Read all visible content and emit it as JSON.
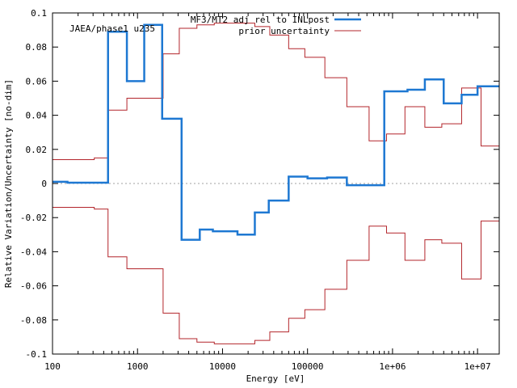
{
  "chart_data": {
    "type": "line",
    "title": "JAEA/phase1 u235",
    "xlabel": "Energy [eV]",
    "ylabel": "Relative Variation/Uncertainty [no-dim]",
    "xscale": "log",
    "xlim": [
      100,
      18000000
    ],
    "ylim": [
      -0.1,
      0.1
    ],
    "x_ticks": [
      {
        "value": 100,
        "label": "100"
      },
      {
        "value": 1000,
        "label": "1000"
      },
      {
        "value": 10000,
        "label": "10000"
      },
      {
        "value": 100000,
        "label": "100000"
      },
      {
        "value": 1000000,
        "label": "1e+06"
      },
      {
        "value": 10000000,
        "label": "1e+07"
      }
    ],
    "y_ticks": [
      {
        "value": 0.1,
        "label": "0.1"
      },
      {
        "value": 0.08,
        "label": "0.08"
      },
      {
        "value": 0.06,
        "label": "0.06"
      },
      {
        "value": 0.04,
        "label": "0.04"
      },
      {
        "value": 0.02,
        "label": "0.02"
      },
      {
        "value": 0,
        "label": "0"
      },
      {
        "value": -0.02,
        "label": "-0.02"
      },
      {
        "value": -0.04,
        "label": "-0.04"
      },
      {
        "value": -0.06,
        "label": "-0.06"
      },
      {
        "value": -0.08,
        "label": "-0.08"
      },
      {
        "value": -0.1,
        "label": "-0.1"
      }
    ],
    "zero_line": true,
    "legend_position": "top-right",
    "series": [
      {
        "name": "MF3/MT2 adj rel to INLpost",
        "color": "#1e78d2",
        "style": "step",
        "edges": [
          100,
          150,
          450,
          750,
          1200,
          1950,
          3300,
          5400,
          7700,
          15000,
          24000,
          35000,
          60000,
          100000,
          170000,
          290000,
          800000,
          1500000,
          2400000,
          4000000,
          6500000,
          10000000,
          18000000
        ],
        "values": [
          0.001,
          0.0005,
          0.089,
          0.06,
          0.093,
          0.038,
          -0.033,
          -0.027,
          -0.028,
          -0.03,
          -0.017,
          -0.01,
          0.004,
          0.003,
          0.0035,
          -0.001,
          0.054,
          0.055,
          0.061,
          0.047,
          0.052,
          0.057
        ]
      },
      {
        "name": "prior uncertainty",
        "color": "#b3252b",
        "style": "step",
        "mirrored": true,
        "edges": [
          100,
          310,
          450,
          750,
          2000,
          3100,
          5000,
          8000,
          24000,
          36000,
          60000,
          93000,
          160000,
          290000,
          530000,
          850000,
          1400000,
          2400000,
          3800000,
          6500000,
          11000000,
          18000000
        ],
        "values": [
          0.014,
          0.015,
          0.043,
          0.05,
          0.076,
          0.091,
          0.093,
          0.094,
          0.092,
          0.087,
          0.079,
          0.074,
          0.062,
          0.045,
          0.025,
          0.029,
          0.045,
          0.033,
          0.035,
          0.056,
          0.022
        ]
      }
    ]
  }
}
